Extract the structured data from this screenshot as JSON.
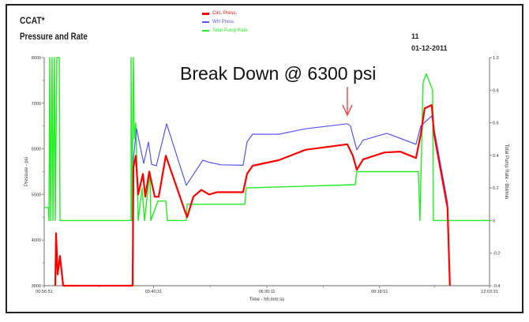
{
  "header": {
    "title": "CCAT*",
    "subtitle": "Pressure and Rate",
    "run": "11",
    "date": "01-12-2011"
  },
  "annotation": {
    "text": "Break Down @ 6300 psi",
    "arrow_time": "08:30:37",
    "arrow_color": "#f05050"
  },
  "chart_data": {
    "type": "line",
    "title": "Pressure and Rate",
    "xlabel": "Time - hh:mm:ss",
    "ylabel": "Pressure - psi",
    "y2label": "Total Pump Rate - Bbl/min",
    "xlim": [
      "00:56:51",
      "12:03:31"
    ],
    "xticks": [
      "00:56:51",
      "03:40:31",
      "06:30:11",
      "09:18:51",
      "12:03:31"
    ],
    "ylim": [
      3000,
      8000
    ],
    "yticks": [
      "3000",
      "4000",
      "5000",
      "6000",
      "7000",
      "8000"
    ],
    "y2lim": [
      -0.4,
      1.0
    ],
    "y2ticks": [
      "-0.4",
      "-0.2",
      "0",
      "0.2",
      "0.4",
      "0.6",
      "0.8",
      "1.0"
    ],
    "grid": false,
    "legend": "top-center",
    "series": [
      {
        "name": "Circ. Press.",
        "color": "#ff0000",
        "axis": "left",
        "points": [
          [
            "01:13:24",
            3000
          ],
          [
            "01:14:35",
            4150
          ],
          [
            "01:16:57",
            3250
          ],
          [
            "01:20:29",
            3650
          ],
          [
            "01:25:13",
            3000
          ],
          [
            "03:09:12",
            3000
          ],
          [
            "03:10:23",
            5600
          ],
          [
            "03:13:56",
            5850
          ],
          [
            "03:17:28",
            5000
          ],
          [
            "03:24:34",
            5450
          ],
          [
            "03:28:06",
            4950
          ],
          [
            "03:34:01",
            5500
          ],
          [
            "03:42:17",
            4950
          ],
          [
            "03:48:12",
            4950
          ],
          [
            "03:58:50",
            5850
          ],
          [
            "04:30:44",
            4500
          ],
          [
            "04:40:11",
            4950
          ],
          [
            "04:52:00",
            5100
          ],
          [
            "05:03:49",
            5000
          ],
          [
            "05:15:39",
            5050
          ],
          [
            "05:54:38",
            5050
          ],
          [
            "06:00:33",
            5450
          ],
          [
            "06:08:49",
            5630
          ],
          [
            "06:47:48",
            5750
          ],
          [
            "07:27:59",
            5980
          ],
          [
            "08:30:37",
            6100
          ],
          [
            "08:38:53",
            5850
          ],
          [
            "08:44:48",
            5540
          ],
          [
            "08:54:15",
            5770
          ],
          [
            "09:26:10",
            5920
          ],
          [
            "09:49:49",
            5940
          ],
          [
            "10:13:26",
            5800
          ],
          [
            "10:20:31",
            6320
          ],
          [
            "10:26:25",
            6890
          ],
          [
            "10:37:03",
            6960
          ],
          [
            "10:40:35",
            6320
          ],
          [
            "11:00:41",
            4710
          ],
          [
            "11:04:14",
            3000
          ]
        ]
      },
      {
        "name": "WH Press.",
        "color": "#5555ff",
        "axis": "left",
        "points": [
          [
            "03:09:12",
            3000
          ],
          [
            "03:10:23",
            5800
          ],
          [
            "03:15:07",
            6440
          ],
          [
            "03:25:45",
            5680
          ],
          [
            "03:32:50",
            6150
          ],
          [
            "03:37:33",
            5660
          ],
          [
            "03:44:39",
            5630
          ],
          [
            "04:00:01",
            6550
          ],
          [
            "04:29:33",
            5200
          ],
          [
            "04:54:22",
            5750
          ],
          [
            "05:05:00",
            5700
          ],
          [
            "05:21:33",
            5650
          ],
          [
            "05:54:38",
            5640
          ],
          [
            "06:00:33",
            6150
          ],
          [
            "06:08:49",
            6320
          ],
          [
            "06:47:48",
            6320
          ],
          [
            "07:27:59",
            6440
          ],
          [
            "08:30:37",
            6550
          ],
          [
            "08:35:20",
            6500
          ],
          [
            "08:44:48",
            5980
          ],
          [
            "08:54:15",
            6190
          ],
          [
            "09:29:42",
            6340
          ],
          [
            "10:13:26",
            6100
          ],
          [
            "10:20:31",
            6500
          ],
          [
            "10:37:03",
            6720
          ],
          [
            "10:40:35",
            6440
          ],
          [
            "11:00:41",
            4820
          ],
          [
            "11:04:14",
            3000
          ]
        ]
      },
      {
        "name": "Total Pump Rate",
        "color": "#22ee22",
        "axis": "right",
        "points": [
          [
            "00:56:51",
            0.08
          ],
          [
            "01:03:00",
            0.08
          ],
          [
            "01:03:56",
            0
          ],
          [
            "01:05:07",
            1.0
          ],
          [
            "01:06:18",
            0
          ],
          [
            "01:08:40",
            1.0
          ],
          [
            "01:09:51",
            0
          ],
          [
            "01:12:13",
            1.0
          ],
          [
            "01:13:24",
            0
          ],
          [
            "01:15:45",
            1.0
          ],
          [
            "01:19:18",
            1.0
          ],
          [
            "01:20:29",
            0
          ],
          [
            "03:06:50",
            0
          ],
          [
            "03:06:50",
            1.0
          ],
          [
            "03:08:01",
            0
          ],
          [
            "03:10:23",
            1.0
          ],
          [
            "03:11:34",
            0.5
          ],
          [
            "03:13:56",
            0.6
          ],
          [
            "03:17:28",
            0
          ],
          [
            "03:23:23",
            0.2
          ],
          [
            "03:26:55",
            0
          ],
          [
            "03:35:11",
            0.3
          ],
          [
            "03:36:22",
            0
          ],
          [
            "03:47:01",
            0.12
          ],
          [
            "03:58:50",
            0.12
          ],
          [
            "04:01:12",
            0
          ],
          [
            "04:29:33",
            0
          ],
          [
            "04:30:44",
            0.1
          ],
          [
            "05:57:00",
            0.1
          ],
          [
            "05:59:21",
            0.2
          ],
          [
            "08:42:26",
            0.22
          ],
          [
            "08:44:48",
            0.3
          ],
          [
            "10:16:58",
            0.3
          ],
          [
            "10:19:20",
            0
          ],
          [
            "10:24:03",
            0.85
          ],
          [
            "10:28:47",
            0.9
          ],
          [
            "10:38:14",
            0.8
          ],
          [
            "10:39:25",
            0
          ],
          [
            "12:03:31",
            0
          ]
        ]
      }
    ]
  }
}
